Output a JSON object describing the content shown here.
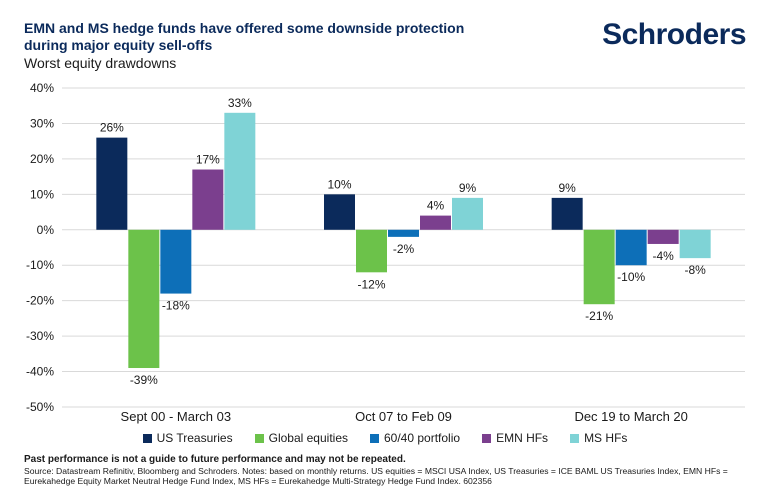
{
  "header": {
    "title": "EMN and MS hedge funds have offered some downside protection during major equity sell-offs",
    "subtitle": "Worst equity drawdowns",
    "logo": "Schroders"
  },
  "chart_data": {
    "type": "bar",
    "categories": [
      "Sept 00 - March 03",
      "Oct 07 to Feb 09",
      "Dec 19 to March 20"
    ],
    "series": [
      {
        "name": "US Treasuries",
        "color": "#0b2a5b",
        "values": [
          26,
          10,
          9
        ],
        "labels": [
          "26%",
          "10%",
          "9%"
        ]
      },
      {
        "name": "Global equities",
        "color": "#6cc24a",
        "values": [
          -39,
          -12,
          -21
        ],
        "labels": [
          "-39%",
          "-12%",
          "-21%"
        ]
      },
      {
        "name": "60/40 portfolio",
        "color": "#0d6fb8",
        "values": [
          -18,
          -2,
          -10
        ],
        "labels": [
          "-18%",
          "-2%",
          "-10%"
        ]
      },
      {
        "name": "EMN HFs",
        "color": "#7b3f8e",
        "values": [
          17,
          4,
          -4
        ],
        "labels": [
          "17%",
          "4%",
          "-4%"
        ]
      },
      {
        "name": "MS HFs",
        "color": "#7fd3d6",
        "values": [
          33,
          9,
          -8
        ],
        "labels": [
          "33%",
          "9%",
          "-8%"
        ]
      }
    ],
    "ylim": [
      -50,
      40
    ],
    "yticks": [
      40,
      30,
      20,
      10,
      0,
      -10,
      -20,
      -30,
      -40,
      -50
    ],
    "ytick_labels": [
      "40%",
      "30%",
      "20%",
      "10%",
      "0%",
      "-10%",
      "-20%",
      "-30%",
      "-40%",
      "-50%"
    ],
    "grid": true,
    "legend_position": "bottom",
    "xlabel": "",
    "ylabel": ""
  },
  "footer": {
    "disclaimer": "Past performance is not a guide to future performance and may not be repeated.",
    "source": "Source: Datastream Refinitiv, Bloomberg and Schroders. Notes: based on monthly returns. US equities = MSCI USA Index, US Treasuries = ICE BAML US Treasuries Index, EMN HFs = Eurekahedge Equity Market Neutral Hedge Fund Index, MS HFs = Eurekahedge Multi-Strategy Hedge Fund Index. 602356"
  }
}
